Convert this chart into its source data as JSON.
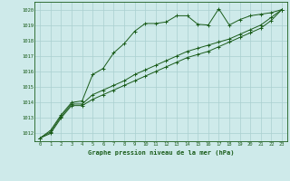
{
  "title": "Graphe pression niveau de la mer (hPa)",
  "background_color": "#ceeaea",
  "grid_color": "#aacfcf",
  "line_color": "#1a5c1a",
  "x_values": [
    0,
    1,
    2,
    3,
    4,
    5,
    6,
    7,
    8,
    9,
    10,
    11,
    12,
    13,
    14,
    15,
    16,
    17,
    18,
    19,
    20,
    21,
    22,
    23
  ],
  "line1": [
    1011.7,
    1012.2,
    1013.2,
    1014.0,
    1014.1,
    1015.8,
    1016.2,
    1017.2,
    1017.8,
    1018.6,
    1019.1,
    1019.1,
    1019.2,
    1019.6,
    1019.6,
    1019.05,
    1019.0,
    1020.05,
    1019.0,
    1019.35,
    1019.6,
    1019.7,
    1019.8,
    1020.0
  ],
  "line2": [
    1011.7,
    1012.1,
    1013.1,
    1013.9,
    1013.9,
    1014.5,
    1014.8,
    1015.1,
    1015.4,
    1015.8,
    1016.1,
    1016.4,
    1016.7,
    1017.0,
    1017.3,
    1017.5,
    1017.7,
    1017.9,
    1018.1,
    1018.4,
    1018.7,
    1019.0,
    1019.5,
    1020.0
  ],
  "line3": [
    1011.7,
    1012.0,
    1013.0,
    1013.8,
    1013.8,
    1014.2,
    1014.5,
    1014.8,
    1015.1,
    1015.4,
    1015.7,
    1016.0,
    1016.3,
    1016.6,
    1016.9,
    1017.1,
    1017.3,
    1017.6,
    1017.9,
    1018.2,
    1018.5,
    1018.8,
    1019.3,
    1020.0
  ],
  "ylim": [
    1011.5,
    1020.5
  ],
  "yticks": [
    1012,
    1013,
    1014,
    1015,
    1016,
    1017,
    1018,
    1019,
    1020
  ],
  "xlim": [
    -0.5,
    23.5
  ],
  "xticks": [
    0,
    1,
    2,
    3,
    4,
    5,
    6,
    7,
    8,
    9,
    10,
    11,
    12,
    13,
    14,
    15,
    16,
    17,
    18,
    19,
    20,
    21,
    22,
    23
  ]
}
